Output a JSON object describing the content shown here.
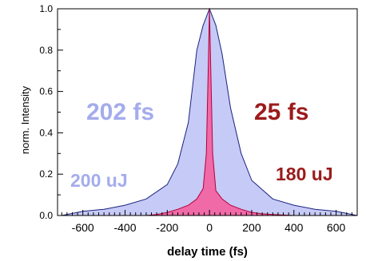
{
  "chart_data": {
    "type": "area",
    "xlabel": "delay time (fs)",
    "ylabel": "norm. Intensity",
    "xlim": [
      -720,
      700
    ],
    "ylim": [
      0,
      1.0
    ],
    "x_ticks": [
      -600,
      -400,
      -200,
      0,
      200,
      400,
      600
    ],
    "y_ticks": [
      0.0,
      0.2,
      0.4,
      0.6,
      0.8,
      1.0
    ],
    "x_tick_labels": [
      "-600",
      "-400",
      "-200",
      "0",
      "200",
      "400",
      "600"
    ],
    "y_tick_labels": [
      "0.0",
      "0.2",
      "0.4",
      "0.6",
      "0.8",
      "1.0"
    ],
    "grid": false,
    "series": [
      {
        "color": "#c6caf6",
        "stroke": "#1a237e",
        "x": [
          -700,
          -600,
          -500,
          -400,
          -300,
          -200,
          -150,
          -100,
          -60,
          -30,
          0,
          30,
          60,
          100,
          150,
          200,
          300,
          400,
          500,
          600,
          700
        ],
        "y": [
          0.0,
          0.02,
          0.03,
          0.05,
          0.08,
          0.15,
          0.25,
          0.45,
          0.8,
          0.92,
          1.0,
          0.92,
          0.78,
          0.52,
          0.3,
          0.17,
          0.08,
          0.05,
          0.03,
          0.02,
          0.0
        ]
      },
      {
        "color": "#f06aa8",
        "stroke": "#b3003c",
        "x": [
          -300,
          -250,
          -200,
          -150,
          -100,
          -60,
          -30,
          -15,
          -5,
          0,
          5,
          15,
          30,
          60,
          100,
          150,
          200,
          250,
          300,
          400
        ],
        "y": [
          0.0,
          0.005,
          0.015,
          0.03,
          0.05,
          0.08,
          0.13,
          0.3,
          0.75,
          1.0,
          0.75,
          0.3,
          0.12,
          0.08,
          0.05,
          0.03,
          0.015,
          0.008,
          0.005,
          0.0
        ]
      }
    ],
    "annotations": [
      {
        "text": "202 fs",
        "color": "#a4acec"
      },
      {
        "text": "25 fs",
        "color": "#9b1b1b"
      },
      {
        "text": "200 uJ",
        "color": "#a4acec"
      },
      {
        "text": "180 uJ",
        "color": "#9b1b1b"
      }
    ]
  }
}
